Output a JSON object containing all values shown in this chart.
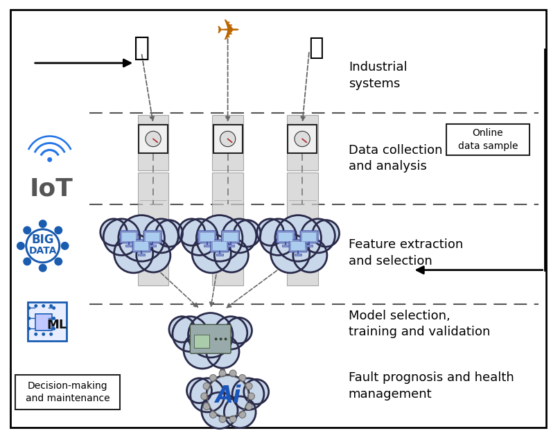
{
  "bg_color": "#ffffff",
  "border_color": "#000000",
  "labels": {
    "industrial_systems": "Industrial\nsystems",
    "data_collection": "Data collection\nand analysis",
    "online_data": "Online\ndata sample",
    "feature_extraction": "Feature extraction\nand selection",
    "model_selection": "Model selection,\ntraining and validation",
    "fault_prognosis": "Fault prognosis and health\nmanagement",
    "decision_making": "Decision-making\nand maintenance"
  },
  "cloud_fill": "#c8d8ea",
  "cloud_edge": "#2a2a4a",
  "cloud_lw": 2.2,
  "server_fill": "#cccccc",
  "server_edge": "#888888",
  "dash_color": "#555555",
  "arrow_color": "#111111",
  "blue_color": "#1a5cb0",
  "iot_blue": "#2575e8",
  "big_data_blue": "#1a5cb0",
  "ml_blue": "#1a5cb0",
  "text_color": "#000000",
  "label_fontsize": 13,
  "small_fontsize": 10
}
